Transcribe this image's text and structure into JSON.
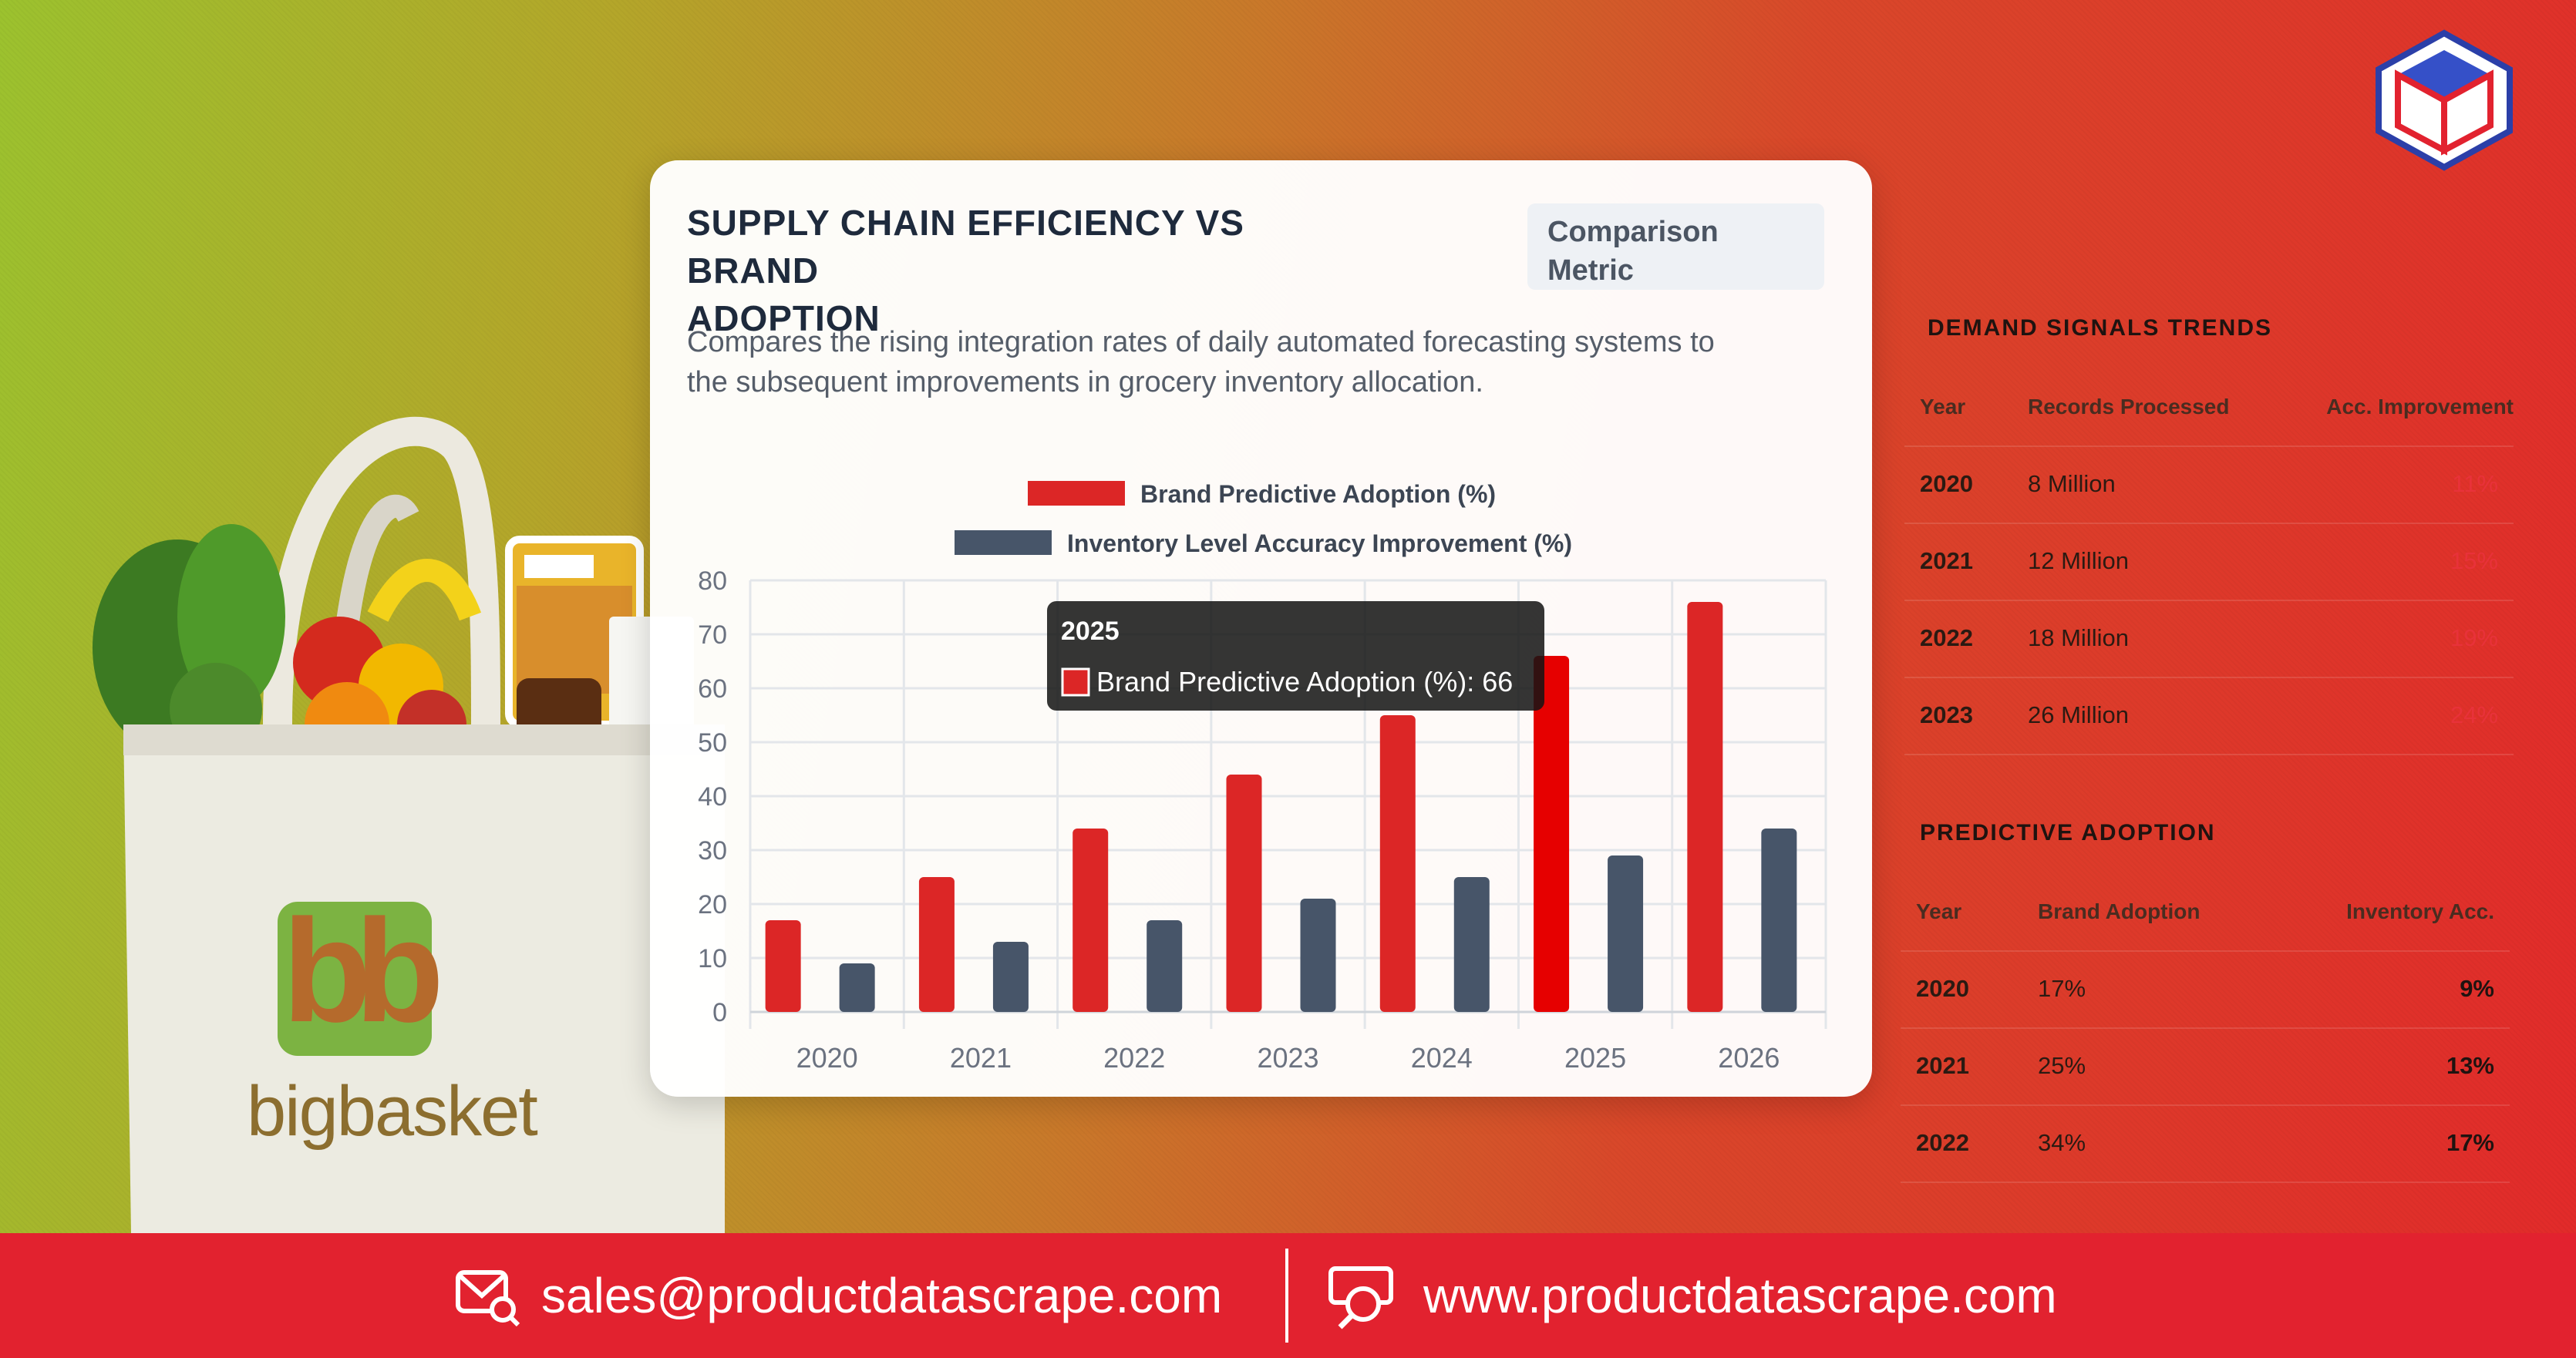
{
  "card": {
    "title_line1": "SUPPLY CHAIN EFFICIENCY VS BRAND",
    "title_line2": "ADOPTION",
    "badge_line1": "Comparison",
    "badge_line2": "Metric",
    "description_line1": "Compares the rising integration rates of daily automated forecasting systems to",
    "description_line2": "the subsequent improvements in grocery inventory allocation."
  },
  "chart_data": {
    "type": "bar",
    "categories": [
      "2020",
      "2021",
      "2022",
      "2023",
      "2024",
      "2025",
      "2026"
    ],
    "series": [
      {
        "name": "Brand Predictive Adoption (%)",
        "values": [
          17,
          25,
          34,
          44,
          55,
          66,
          76
        ],
        "color": "#dc2626"
      },
      {
        "name": "Inventory Level Accuracy Improvement (%)",
        "values": [
          9,
          13,
          17,
          21,
          25,
          29,
          34
        ],
        "color": "#475569"
      }
    ],
    "ylim": [
      0,
      80
    ],
    "yticks": [
      "0",
      "10",
      "20",
      "30",
      "40",
      "50",
      "60",
      "70",
      "80"
    ],
    "grid": true,
    "legend": "top",
    "tooltip": {
      "title": "2025",
      "text": "Brand Predictive Adoption (%): 66",
      "category_index": 5,
      "series_index": 0
    }
  },
  "demand_signals": {
    "title": "DEMAND SIGNALS TRENDS",
    "headers": [
      "Year",
      "Records Processed",
      "Acc. Improvement"
    ],
    "rows": [
      [
        "2020",
        "8 Million",
        "11%"
      ],
      [
        "2021",
        "12 Million",
        "15%"
      ],
      [
        "2022",
        "18 Million",
        "19%"
      ],
      [
        "2023",
        "26 Million",
        "24%"
      ]
    ]
  },
  "predictive_adoption": {
    "title": "PREDICTIVE ADOPTION",
    "headers": [
      "Year",
      "Brand Adoption",
      "Inventory Acc."
    ],
    "rows": [
      [
        "2020",
        "17%",
        "9%"
      ],
      [
        "2021",
        "25%",
        "13%"
      ],
      [
        "2022",
        "34%",
        "17%"
      ]
    ]
  },
  "bag": {
    "brand": "bigbasket",
    "label_small": "bigbasket"
  },
  "footer": {
    "email": "sales@productdatascrape.com",
    "website": "www.productdatascrape.com"
  },
  "colors": {
    "accent_red": "#e2222f",
    "bar_red": "#dc2626",
    "bar_slate": "#475569"
  },
  "icons": [
    "logo-cube-icon",
    "mail-search-icon",
    "globe-search-icon"
  ]
}
